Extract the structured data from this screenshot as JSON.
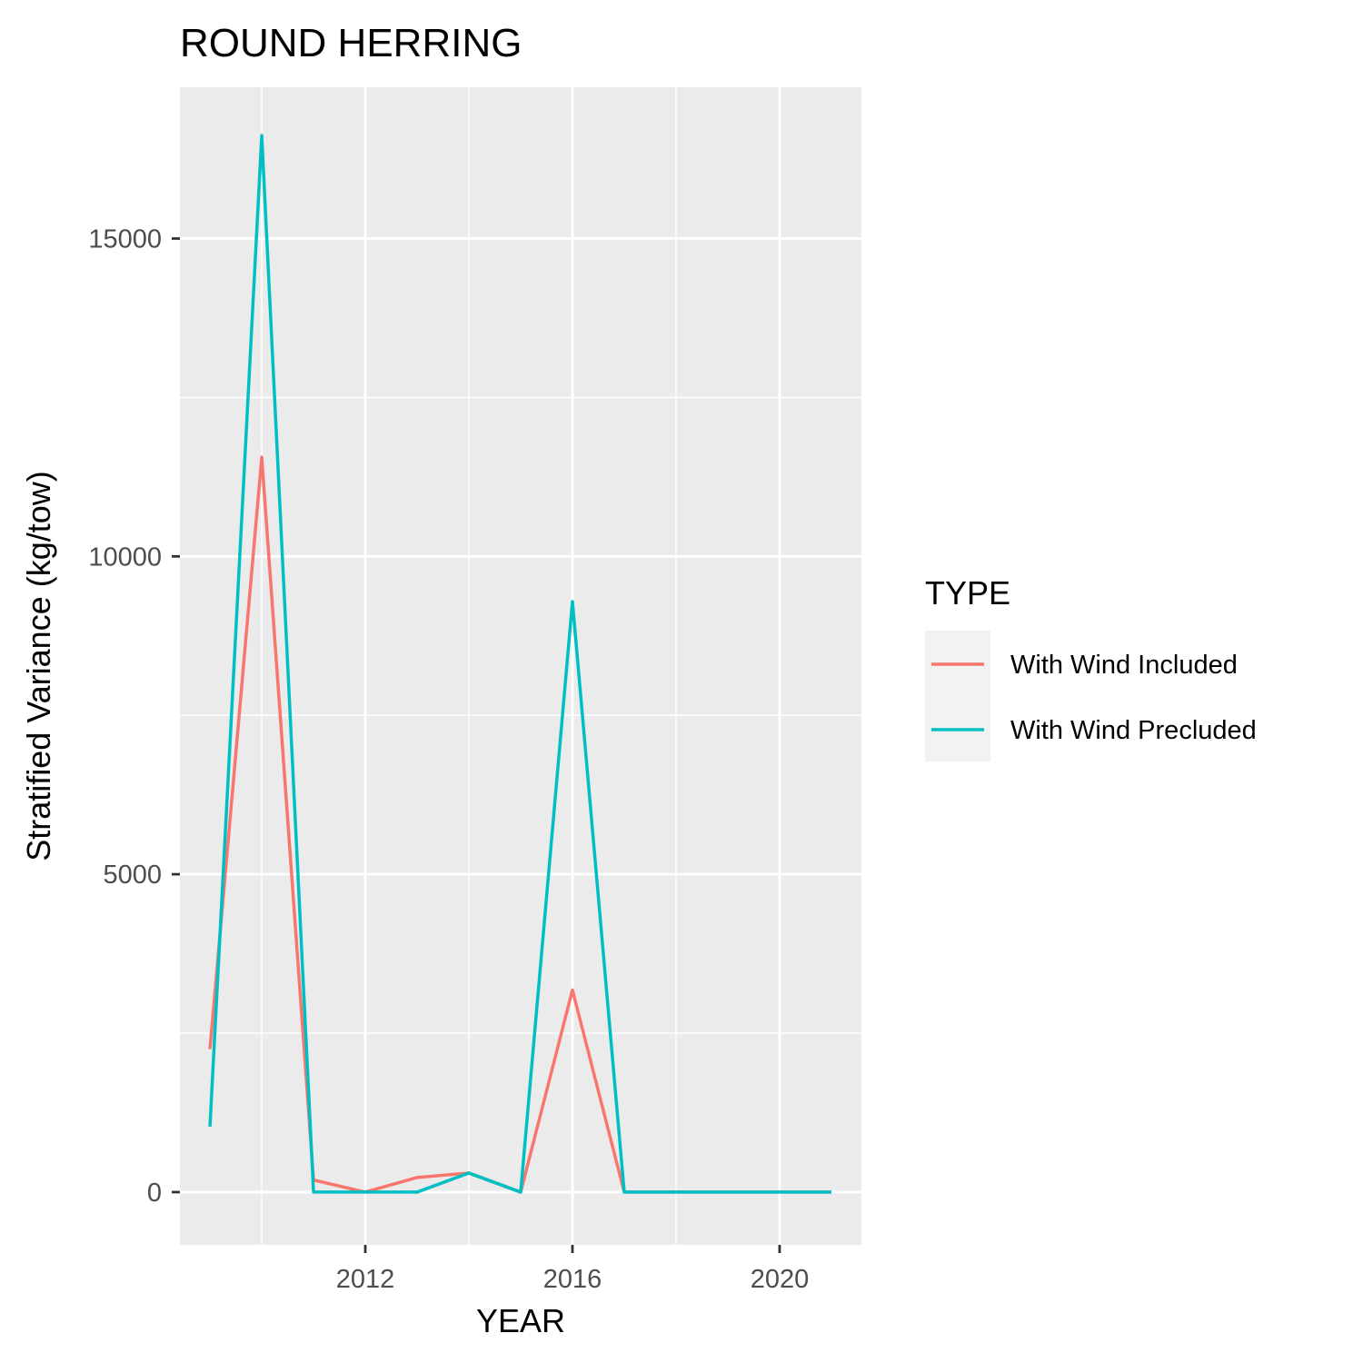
{
  "chart_data": {
    "type": "line",
    "title": "ROUND HERRING",
    "xlabel": "YEAR",
    "ylabel": "Stratified Variance (kg/tow)",
    "x": [
      2009,
      2010,
      2011,
      2012,
      2013,
      2014,
      2015,
      2016,
      2017,
      2018,
      2019,
      2020,
      2021
    ],
    "xlim": [
      2008.42,
      2021.58
    ],
    "ylim": [
      -830,
      17380
    ],
    "x_ticks": [
      2012,
      2016,
      2020
    ],
    "x_tick_labels": [
      "2012",
      "2016",
      "2020"
    ],
    "x_minor_ticks": [
      2010,
      2014,
      2018
    ],
    "y_ticks": [
      0,
      5000,
      10000,
      15000
    ],
    "y_tick_labels": [
      "0",
      "5000",
      "10000",
      "15000"
    ],
    "y_minor_ticks": [
      2500,
      7500,
      12500
    ],
    "grid": true,
    "legend": {
      "title": "TYPE",
      "position": "right"
    },
    "series": [
      {
        "name": "With Wind Included",
        "color": "#F8766D",
        "values": [
          2250,
          11560,
          190,
          0,
          230,
          300,
          0,
          3180,
          0,
          0,
          0,
          0,
          0
        ]
      },
      {
        "name": "With Wind Precluded",
        "color": "#00BFC4",
        "values": [
          1030,
          16620,
          0,
          0,
          0,
          300,
          0,
          9290,
          0,
          0,
          0,
          0,
          0
        ]
      }
    ]
  }
}
